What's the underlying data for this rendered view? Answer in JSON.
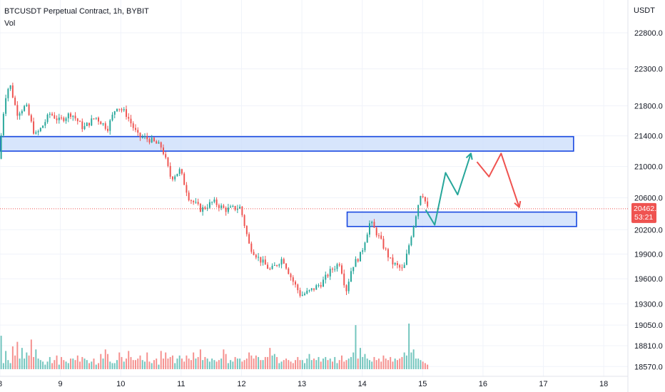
{
  "header": {
    "title": "BTCUSDT Perpetual Contract, 1h, BYBIT",
    "vol_label": "Vol",
    "currency": "USDT"
  },
  "price_tag": {
    "value": "20462.0",
    "countdown": "53:21"
  },
  "colors": {
    "up": "#26a69a",
    "down": "#ef5350",
    "zone_fill": "#c9dcfb",
    "zone_border": "#1848e0",
    "projection_up": "#26a69a",
    "projection_down": "#ef5350",
    "price_line": "#ef5350",
    "tag_bg": "#ef5350"
  },
  "chart_data": {
    "type": "candlestick",
    "symbol": "BTCUSDT Perpetual Contract",
    "timeframe": "1h",
    "exchange": "BYBIT",
    "x_ticks": [
      "8",
      "9",
      "10",
      "11",
      "12",
      "13",
      "14",
      "15",
      "16",
      "17",
      "18"
    ],
    "x_range_days": [
      8.0,
      18.4
    ],
    "y_ticks": [
      22800.0,
      22300.0,
      21800.0,
      21400.0,
      21000.0,
      20600.0,
      20200.0,
      19900.0,
      19600.0,
      19300.0,
      19050.0,
      18810.0,
      18570.0
    ],
    "y_scale": "log",
    "y_range": [
      18540,
      22950
    ],
    "last_price": 20462.0,
    "zones": [
      {
        "day_start": 8.0,
        "day_end": 17.5,
        "low": 21200,
        "high": 21390
      },
      {
        "day_start": 13.75,
        "day_end": 17.55,
        "low": 20240,
        "high": 20420
      }
    ],
    "projection_up": [
      {
        "day": 15.05,
        "price": 20450
      },
      {
        "day": 15.2,
        "price": 20260
      },
      {
        "day": 15.38,
        "price": 20920
      },
      {
        "day": 15.58,
        "price": 20640
      },
      {
        "day": 15.8,
        "price": 21170
      }
    ],
    "projection_down": [
      {
        "day": 15.9,
        "price": 21060
      },
      {
        "day": 16.1,
        "price": 20870
      },
      {
        "day": 16.3,
        "price": 21170
      },
      {
        "day": 16.6,
        "price": 20480
      }
    ],
    "path": [
      [
        8.0,
        21100
      ],
      [
        8.1,
        21900
      ],
      [
        8.18,
        22100
      ],
      [
        8.3,
        21700
      ],
      [
        8.45,
        21800
      ],
      [
        8.6,
        21400
      ],
      [
        8.7,
        21500
      ],
      [
        8.85,
        21700
      ],
      [
        9.0,
        21600
      ],
      [
        9.2,
        21700
      ],
      [
        9.4,
        21500
      ],
      [
        9.6,
        21650
      ],
      [
        9.8,
        21500
      ],
      [
        9.95,
        21800
      ],
      [
        10.1,
        21700
      ],
      [
        10.3,
        21400
      ],
      [
        10.5,
        21350
      ],
      [
        10.7,
        21250
      ],
      [
        10.85,
        20850
      ],
      [
        11.0,
        20950
      ],
      [
        11.15,
        20600
      ],
      [
        11.35,
        20450
      ],
      [
        11.55,
        20550
      ],
      [
        11.75,
        20450
      ],
      [
        12.0,
        20480
      ],
      [
        12.15,
        20000
      ],
      [
        12.3,
        19850
      ],
      [
        12.5,
        19700
      ],
      [
        12.7,
        19850
      ],
      [
        12.85,
        19600
      ],
      [
        13.0,
        19400
      ],
      [
        13.15,
        19450
      ],
      [
        13.35,
        19550
      ],
      [
        13.5,
        19700
      ],
      [
        13.65,
        19800
      ],
      [
        13.75,
        19450
      ],
      [
        13.85,
        19750
      ],
      [
        14.0,
        19900
      ],
      [
        14.15,
        20300
      ],
      [
        14.3,
        20100
      ],
      [
        14.5,
        19800
      ],
      [
        14.7,
        19700
      ],
      [
        14.85,
        20200
      ],
      [
        15.0,
        20700
      ],
      [
        15.1,
        20462
      ]
    ],
    "vol_range": [
      0,
      60
    ],
    "volume": [
      44,
      8,
      24,
      12,
      8,
      30,
      18,
      36,
      14,
      28,
      14,
      22,
      18,
      39,
      16,
      26,
      14,
      12,
      10,
      6,
      10,
      16,
      8,
      12,
      18,
      6,
      16,
      12,
      10,
      8,
      14,
      14,
      12,
      18,
      10,
      16,
      14,
      12,
      8,
      10,
      14,
      6,
      8,
      20,
      14,
      26,
      20,
      10,
      8,
      8,
      12,
      22,
      16,
      10,
      14,
      24,
      16,
      12,
      12,
      14,
      18,
      12,
      10,
      22,
      10,
      8,
      12,
      14,
      6,
      24,
      14,
      22,
      14,
      16,
      18,
      8,
      14,
      18,
      14,
      10,
      18,
      14,
      12,
      22,
      14,
      16,
      26,
      12,
      16,
      14,
      10,
      14,
      12,
      10,
      12,
      14,
      26,
      20,
      8,
      12,
      10,
      16,
      14,
      14,
      10,
      12,
      14,
      22,
      18,
      14,
      18,
      16,
      12,
      12,
      16,
      16,
      28,
      18,
      20,
      16,
      8,
      10,
      12,
      14,
      12,
      10,
      8,
      12,
      16,
      12,
      12,
      8,
      14,
      20,
      12,
      14,
      12,
      16,
      10,
      14,
      16,
      12,
      14,
      10,
      16,
      8,
      12,
      18,
      10,
      12,
      14,
      16,
      22,
      58,
      14,
      28,
      16,
      20,
      14,
      12,
      10,
      16,
      12,
      14,
      10,
      18,
      14,
      12,
      16,
      10,
      14,
      12,
      14,
      16,
      22,
      18,
      60,
      22,
      26,
      14,
      14,
      12,
      10,
      8,
      6
    ]
  }
}
